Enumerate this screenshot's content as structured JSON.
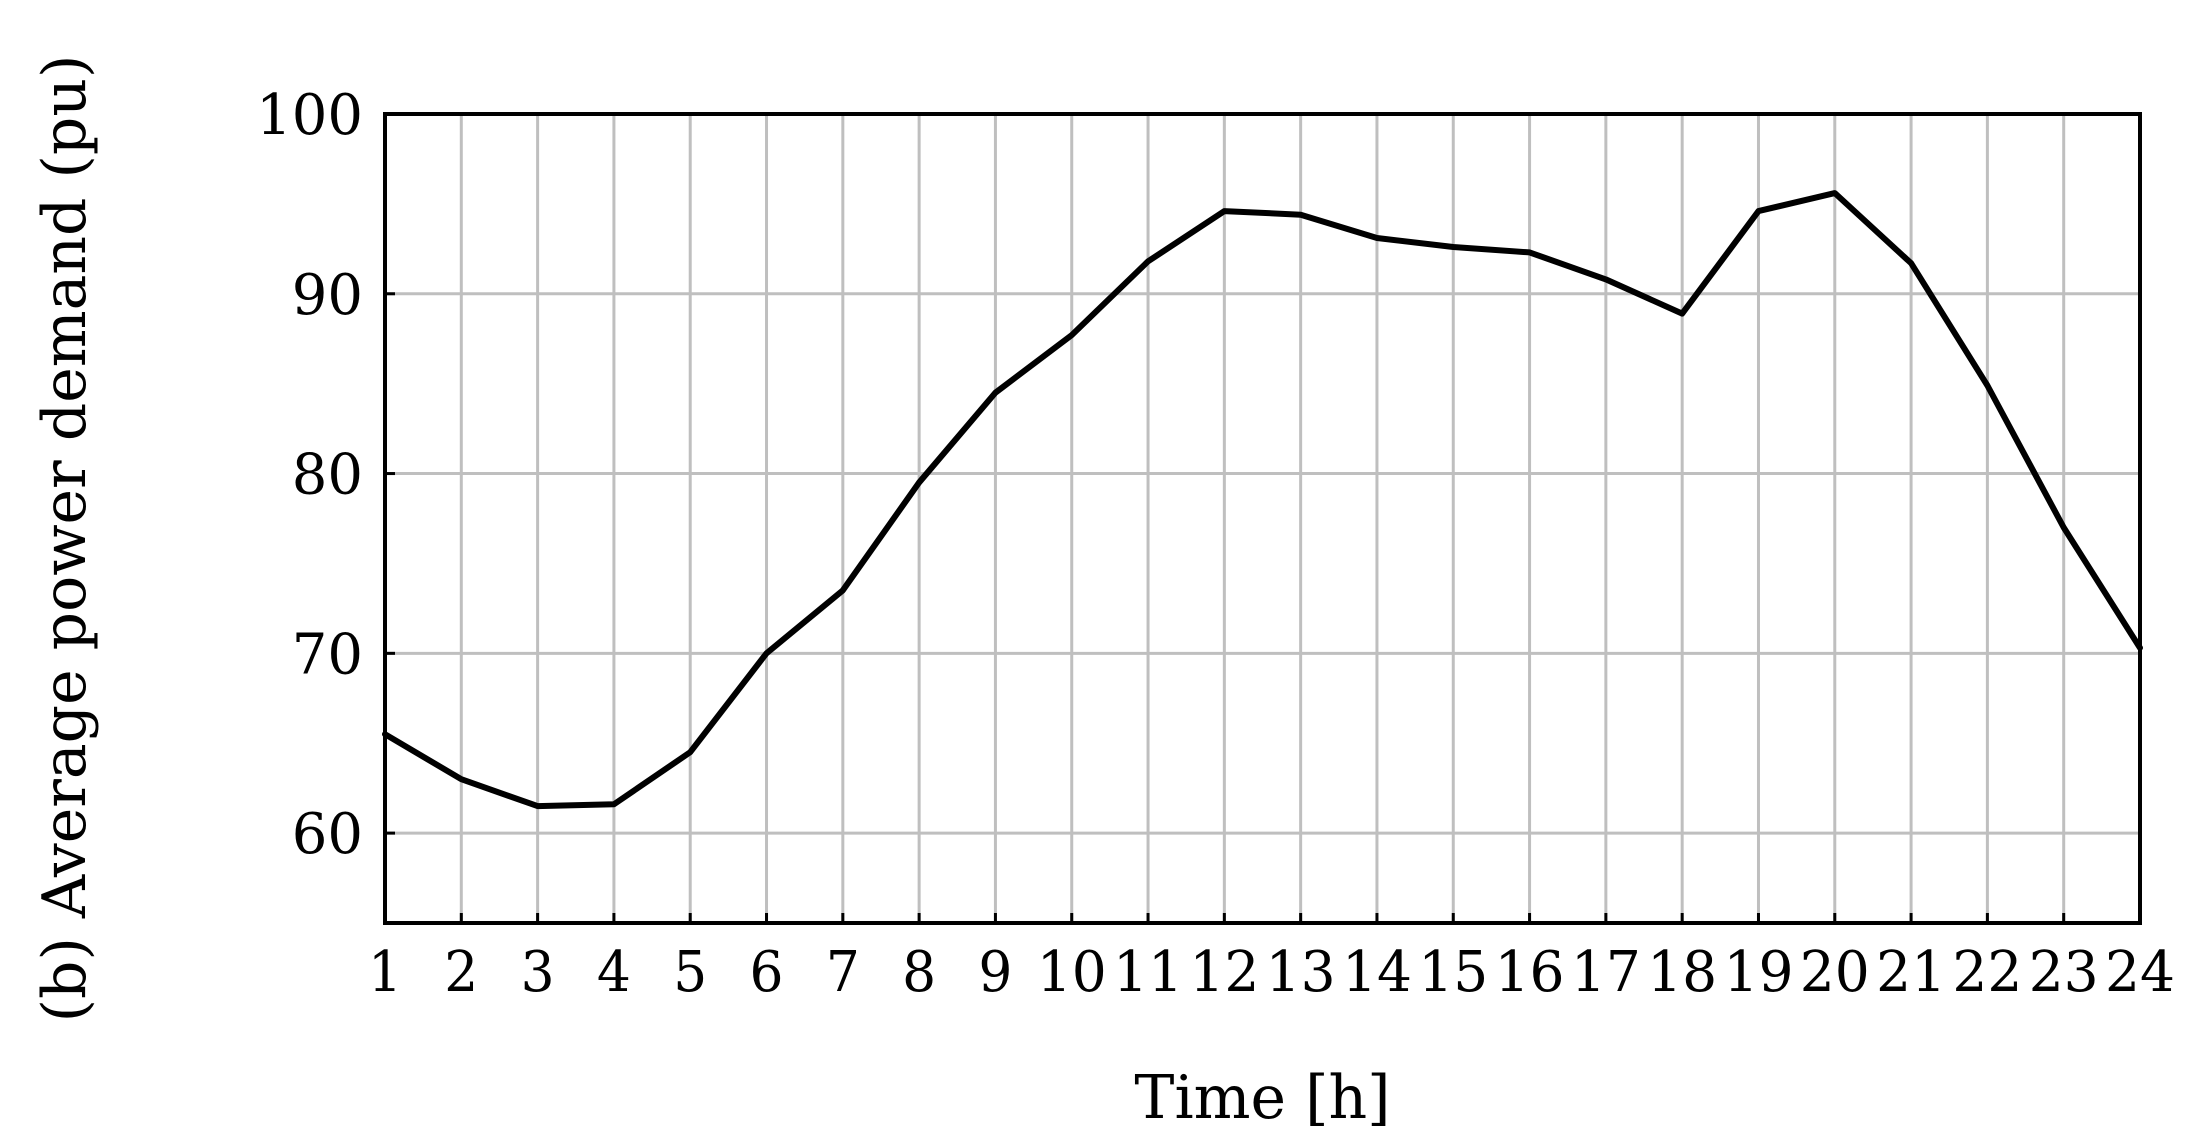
{
  "chart_data": {
    "type": "line",
    "title": "",
    "xlabel": "Time [h]",
    "ylabel": "(b) Average power demand (pu)",
    "x": [
      1,
      2,
      3,
      4,
      5,
      6,
      7,
      8,
      9,
      10,
      11,
      12,
      13,
      14,
      15,
      16,
      17,
      18,
      19,
      20,
      21,
      22,
      23,
      24
    ],
    "series": [
      {
        "values": [
          65.5,
          63.0,
          61.5,
          61.6,
          64.5,
          70.0,
          73.5,
          79.5,
          84.5,
          87.7,
          91.8,
          94.6,
          94.4,
          93.1,
          92.6,
          92.3,
          90.8,
          88.9,
          94.6,
          95.6,
          91.7,
          84.9,
          77.0,
          70.3
        ],
        "color": "#000000"
      }
    ],
    "xlim": [
      1,
      24
    ],
    "ylim": [
      55,
      100
    ],
    "x_ticks": [
      "1",
      "2",
      "3",
      "4",
      "5",
      "6",
      "7",
      "8",
      "9",
      "10",
      "11",
      "12",
      "13",
      "14",
      "15",
      "16",
      "17",
      "18",
      "19",
      "20",
      "21",
      "22",
      "23",
      "24"
    ],
    "y_ticks": [
      "60",
      "70",
      "80",
      "90",
      "100"
    ],
    "grid": true,
    "legend": "none",
    "colors": {
      "line": "#000000",
      "grid": "#bfbfbf",
      "frame": "#000000"
    }
  }
}
